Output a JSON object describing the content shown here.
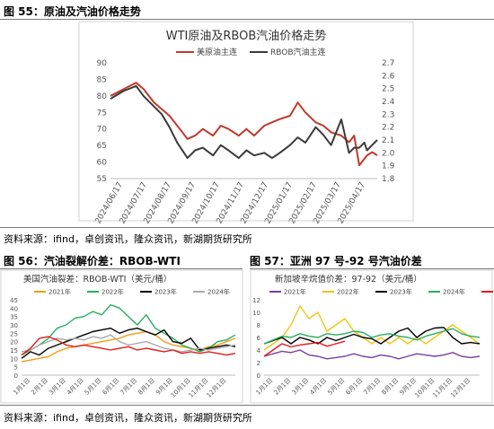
{
  "figures": {
    "fig55": {
      "title": "图 55：原油及汽油价格走势"
    },
    "fig56": {
      "title": "图 56：汽油裂解价差：RBOB-WTI"
    },
    "fig57": {
      "title": "图 57：亚洲 97 号-92 号汽油价差"
    }
  },
  "source_text": "资料来源：ifind，卓创资讯，隆众资讯，新湖期货研究所",
  "chart_data": [
    {
      "id": "chart55",
      "type": "line",
      "title": "WTI原油及RBOB汽油价格走势",
      "x_tick_labels": [
        "2024/06/17",
        "2024/07/17",
        "2024/08/17",
        "2024/09/17",
        "2024/10/17",
        "2024/11/17",
        "2024/12/17",
        "2025/01/17",
        "2025/02/17",
        "2025/03/17",
        "2025/04/17"
      ],
      "y_left": {
        "min": 55,
        "max": 90,
        "ticks": [
          55,
          60,
          65,
          70,
          75,
          80,
          85,
          90
        ]
      },
      "y_right": {
        "min": 1.8,
        "max": 2.7,
        "ticks": [
          1.8,
          1.9,
          2.0,
          2.1,
          2.2,
          2.3,
          2.4,
          2.5,
          2.6,
          2.7
        ]
      },
      "legend_position": "top",
      "grid": false,
      "x_months": [
        0,
        0.5,
        1,
        1.3,
        1.7,
        2,
        2.3,
        2.6,
        3,
        3.3,
        3.6,
        4,
        4.3,
        4.6,
        5,
        5.3,
        5.6,
        6,
        6.3,
        6.6,
        7,
        7.3,
        7.6,
        8,
        8.3,
        8.6,
        9,
        9.3,
        9.5,
        9.7,
        9.9,
        10,
        10.2,
        10.4
      ],
      "series": [
        {
          "name": "美原油主连",
          "axis": "left",
          "color": "#c0392b",
          "values": [
            80,
            82,
            84,
            82,
            78,
            76,
            74,
            71,
            67,
            68,
            70,
            68,
            71,
            70,
            68,
            70,
            68,
            71,
            72,
            73,
            74,
            78,
            75,
            72,
            71,
            69,
            68,
            66,
            68,
            59,
            61,
            62,
            63,
            62
          ]
        },
        {
          "name": "RBOB汽油主连",
          "axis": "right",
          "color": "#3a3a3a",
          "values": [
            2.42,
            2.48,
            2.52,
            2.44,
            2.36,
            2.3,
            2.2,
            2.08,
            1.96,
            2.02,
            2.04,
            1.98,
            2.06,
            2.02,
            1.96,
            2.02,
            1.98,
            2.0,
            1.96,
            2.0,
            2.06,
            2.12,
            2.08,
            2.2,
            2.14,
            2.06,
            2.26,
            2.0,
            2.04,
            2.04,
            2.08,
            2.02,
            2.06,
            2.1
          ]
        }
      ]
    },
    {
      "id": "chart56",
      "type": "line",
      "title": "美国汽油裂差：RBOB-WTI（美元/桶）",
      "x_tick_labels": [
        "1月1日",
        "2月1日",
        "3月1日",
        "4月1日",
        "5月1日",
        "6月1日",
        "7月1日",
        "8月1日",
        "9月1日",
        "10月1日",
        "11月1日",
        "12月1日"
      ],
      "y": {
        "min": 0,
        "max": 45,
        "ticks": [
          0,
          5,
          10,
          15,
          20,
          25,
          30,
          35,
          40,
          45
        ]
      },
      "legend_position": "top",
      "grid": false,
      "x_months": [
        0,
        0.5,
        1,
        1.5,
        2,
        2.5,
        3,
        3.5,
        4,
        4.5,
        5,
        5.5,
        6,
        6.5,
        7,
        7.5,
        8,
        8.5,
        9,
        9.5,
        10,
        10.5,
        11,
        11.5,
        12
      ],
      "series": [
        {
          "name": "2021年",
          "color": "#f39c12",
          "values": [
            8,
            9,
            10,
            11,
            14,
            16,
            17,
            18,
            19,
            20,
            21,
            22,
            24,
            25,
            26,
            24,
            20,
            18,
            17,
            16,
            15,
            17,
            18,
            20,
            22
          ]
        },
        {
          "name": "2022年",
          "color": "#27ae60",
          "values": [
            12,
            15,
            18,
            22,
            28,
            30,
            34,
            35,
            38,
            36,
            42,
            40,
            35,
            30,
            36,
            28,
            25,
            22,
            18,
            16,
            14,
            16,
            20,
            21,
            24
          ]
        },
        {
          "name": "2023年",
          "color": "#000000",
          "values": [
            10,
            14,
            12,
            16,
            18,
            20,
            22,
            24,
            26,
            27,
            28,
            25,
            27,
            28,
            26,
            24,
            27,
            20,
            19,
            22,
            15,
            16,
            17,
            18,
            17
          ]
        },
        {
          "name": "2024年",
          "color": "#a9a9a9",
          "values": [
            14,
            15,
            18,
            20,
            22,
            21,
            22,
            21,
            23,
            22,
            24,
            20,
            18,
            19,
            20,
            18,
            16,
            15,
            14,
            15,
            16,
            15,
            16,
            17,
            18
          ]
        },
        {
          "name": "2025年",
          "color": "#e31a1c",
          "values": [
            12,
            16,
            22,
            23,
            21,
            18,
            17,
            18,
            17,
            16,
            15,
            16,
            17,
            15,
            16,
            15,
            14,
            15,
            13,
            14,
            13,
            14,
            13,
            12,
            13
          ]
        }
      ]
    },
    {
      "id": "chart57",
      "type": "line",
      "title": "新加坡辛烷值价差：97-92（美元/桶）",
      "x_tick_labels": [
        "1月1日",
        "2月1日",
        "3月1日",
        "4月1日",
        "5月1日",
        "6月1日",
        "7月1日",
        "8月1日",
        "9月1日",
        "10月1日",
        "11月1日",
        "12月1日"
      ],
      "y": {
        "min": 0,
        "max": 12,
        "ticks": [
          0,
          2,
          4,
          6,
          8,
          10,
          12
        ]
      },
      "legend_position": "top",
      "grid": false,
      "x_months": [
        0,
        0.5,
        1,
        1.5,
        2,
        2.5,
        3,
        3.5,
        4,
        4.5,
        5,
        5.5,
        6,
        6.5,
        7,
        7.5,
        8,
        8.5,
        9,
        9.5,
        10,
        10.5,
        11,
        11.5,
        12
      ],
      "series": [
        {
          "name": "2021年",
          "color": "#7b3fa0",
          "values": [
            3,
            3.4,
            3.8,
            3.6,
            4,
            3.2,
            3,
            2.6,
            2.8,
            3,
            3.4,
            3,
            2.8,
            3.2,
            3,
            2.6,
            3,
            3.4,
            3.2,
            3,
            3.2,
            3.6,
            3,
            2.8,
            3
          ]
        },
        {
          "name": "2022年",
          "color": "#f1c40f",
          "values": [
            4,
            5,
            6,
            8,
            11,
            9,
            10,
            7,
            8,
            9,
            7,
            6,
            5,
            6,
            5,
            6,
            5,
            6,
            5,
            6,
            7,
            8,
            7,
            6,
            5
          ]
        },
        {
          "name": "2023年",
          "color": "#000000",
          "values": [
            5,
            5.5,
            6,
            5,
            6,
            5.6,
            5,
            6,
            5.5,
            6,
            6.5,
            6,
            5.8,
            5,
            6,
            7,
            7.5,
            6,
            7,
            7.5,
            7.6,
            6,
            5,
            5.2,
            5
          ]
        },
        {
          "name": "2024年",
          "color": "#27ae60",
          "values": [
            5,
            5.6,
            6.2,
            6,
            6.6,
            6.2,
            6,
            6.6,
            6.4,
            6.6,
            7,
            6.8,
            6,
            6.4,
            6.6,
            6.2,
            6,
            5.6,
            6.2,
            6.6,
            7,
            7.4,
            6.6,
            6.2,
            6
          ]
        },
        {
          "name": "2025年",
          "color": "#e31a1c",
          "values": [
            3,
            4,
            5,
            4.5,
            4.8,
            5,
            5.2,
            4.6,
            5,
            5.4
          ]
        }
      ]
    }
  ]
}
